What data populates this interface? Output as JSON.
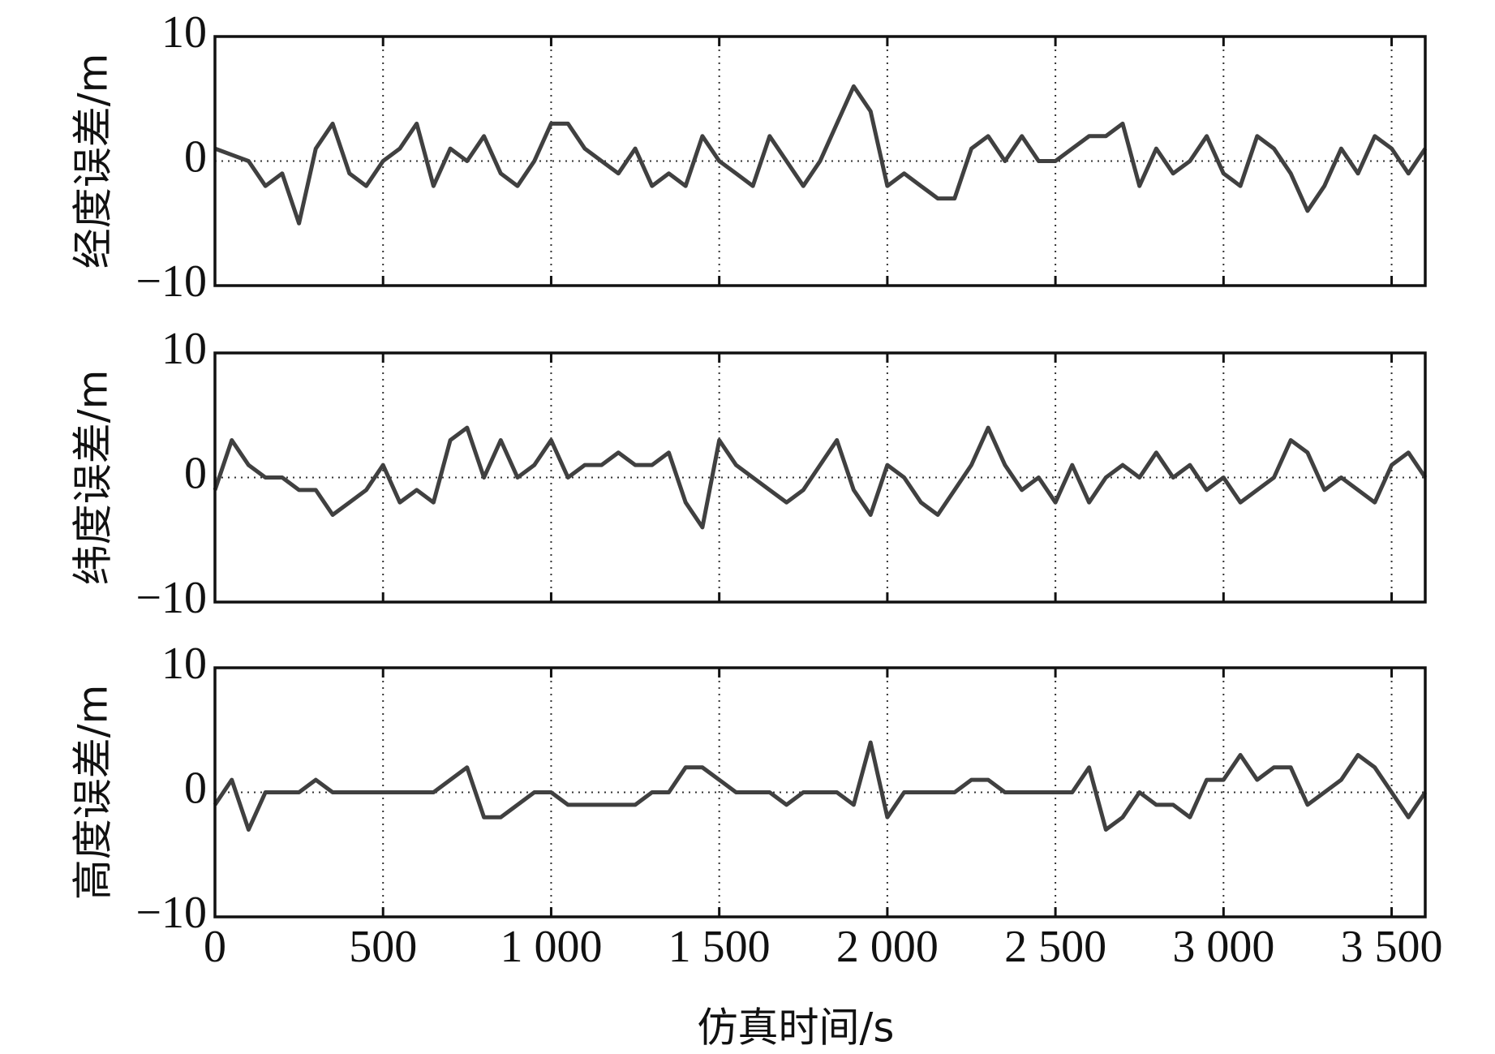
{
  "chart_data": [
    {
      "type": "line",
      "ylabel": "经度误差/m",
      "color": "#404040",
      "x": [
        0,
        50,
        100,
        150,
        200,
        250,
        300,
        350,
        400,
        450,
        500,
        550,
        600,
        650,
        700,
        750,
        800,
        850,
        900,
        950,
        1000,
        1050,
        1100,
        1150,
        1200,
        1250,
        1300,
        1350,
        1400,
        1450,
        1500,
        1550,
        1600,
        1650,
        1700,
        1750,
        1800,
        1850,
        1900,
        1950,
        2000,
        2050,
        2100,
        2150,
        2200,
        2250,
        2300,
        2350,
        2400,
        2450,
        2500,
        2550,
        2600,
        2650,
        2700,
        2750,
        2800,
        2850,
        2900,
        2950,
        3000,
        3050,
        3100,
        3150,
        3200,
        3250,
        3300,
        3350,
        3400,
        3450,
        3500,
        3550,
        3600
      ],
      "values": [
        1,
        0.5,
        0,
        -2,
        -1,
        -5,
        1,
        3,
        -1,
        -2,
        0,
        1,
        3,
        -2,
        1,
        0,
        2,
        -1,
        -2,
        0,
        3,
        3,
        1,
        0,
        -1,
        1,
        -2,
        -1,
        -2,
        2,
        0,
        -1,
        -2,
        2,
        0,
        -2,
        0,
        3,
        6,
        4,
        -2,
        -1,
        -2,
        -3,
        -3,
        1,
        2,
        0,
        2,
        0,
        0,
        1,
        2,
        2,
        3,
        -2,
        1,
        -1,
        0,
        2,
        -1,
        -2,
        2,
        1,
        -1,
        -4,
        -2,
        1,
        -1,
        2,
        1,
        -1,
        1
      ],
      "xlim": [
        0,
        3600
      ],
      "xticks": [
        0,
        500,
        1000,
        1500,
        2000,
        2500,
        3000,
        3500
      ],
      "ylim": [
        -10,
        10
      ],
      "yticks": [
        {
          "value": -10,
          "label": "−10"
        },
        0,
        10
      ],
      "grid": true
    },
    {
      "type": "line",
      "ylabel": "纬度误差/m",
      "color": "#404040",
      "x": [
        0,
        50,
        100,
        150,
        200,
        250,
        300,
        350,
        400,
        450,
        500,
        550,
        600,
        650,
        700,
        750,
        800,
        850,
        900,
        950,
        1000,
        1050,
        1100,
        1150,
        1200,
        1250,
        1300,
        1350,
        1400,
        1450,
        1500,
        1550,
        1600,
        1650,
        1700,
        1750,
        1800,
        1850,
        1900,
        1950,
        2000,
        2050,
        2100,
        2150,
        2200,
        2250,
        2300,
        2350,
        2400,
        2450,
        2500,
        2550,
        2600,
        2650,
        2700,
        2750,
        2800,
        2850,
        2900,
        2950,
        3000,
        3050,
        3100,
        3150,
        3200,
        3250,
        3300,
        3350,
        3400,
        3450,
        3500,
        3550,
        3600
      ],
      "values": [
        -1,
        3,
        1,
        0,
        0,
        -1,
        -1,
        -3,
        -2,
        -1,
        1,
        -2,
        -1,
        -2,
        3,
        4,
        0,
        3,
        0,
        1,
        3,
        0,
        1,
        1,
        2,
        1,
        1,
        2,
        -2,
        -4,
        3,
        1,
        0,
        -1,
        -2,
        -1,
        1,
        3,
        -1,
        -3,
        1,
        0,
        -2,
        -3,
        -1,
        1,
        4,
        1,
        -1,
        0,
        -2,
        1,
        -2,
        0,
        1,
        0,
        2,
        0,
        1,
        -1,
        0,
        -2,
        -1,
        0,
        3,
        2,
        -1,
        0,
        -1,
        -2,
        1,
        2,
        0
      ],
      "xlim": [
        0,
        3600
      ],
      "xticks": [
        0,
        500,
        1000,
        1500,
        2000,
        2500,
        3000,
        3500
      ],
      "ylim": [
        -10,
        10
      ],
      "yticks": [
        {
          "value": -10,
          "label": "−10"
        },
        0,
        10
      ],
      "grid": true
    },
    {
      "type": "line",
      "ylabel": "高度误差/m",
      "xlabel": "仿真时间/s",
      "color": "#404040",
      "x": [
        0,
        50,
        100,
        150,
        200,
        250,
        300,
        350,
        400,
        450,
        500,
        550,
        600,
        650,
        700,
        750,
        800,
        850,
        900,
        950,
        1000,
        1050,
        1100,
        1150,
        1200,
        1250,
        1300,
        1350,
        1400,
        1450,
        1500,
        1550,
        1600,
        1650,
        1700,
        1750,
        1800,
        1850,
        1900,
        1950,
        2000,
        2050,
        2100,
        2150,
        2200,
        2250,
        2300,
        2350,
        2400,
        2450,
        2500,
        2550,
        2600,
        2650,
        2700,
        2750,
        2800,
        2850,
        2900,
        2950,
        3000,
        3050,
        3100,
        3150,
        3200,
        3250,
        3300,
        3350,
        3400,
        3450,
        3500,
        3550,
        3600
      ],
      "values": [
        -1,
        1,
        -3,
        0,
        0,
        0,
        1,
        0,
        0,
        0,
        0,
        0,
        0,
        0,
        1,
        2,
        -2,
        -2,
        -1,
        0,
        0,
        -1,
        -1,
        -1,
        -1,
        -1,
        0,
        0,
        2,
        2,
        1,
        0,
        0,
        0,
        -1,
        0,
        0,
        0,
        -1,
        4,
        -2,
        0,
        0,
        0,
        0,
        1,
        1,
        0,
        0,
        0,
        0,
        0,
        2,
        -3,
        -2,
        0,
        -1,
        -1,
        -2,
        1,
        1,
        3,
        1,
        2,
        2,
        -1,
        0,
        1,
        3,
        2,
        0,
        -2,
        0
      ],
      "xlim": [
        0,
        3600
      ],
      "xticks": [
        0,
        500,
        {
          "value": 1000,
          "label": "1 000"
        },
        {
          "value": 1500,
          "label": "1 500"
        },
        {
          "value": 2000,
          "label": "2 000"
        },
        {
          "value": 2500,
          "label": "2 500"
        },
        {
          "value": 3000,
          "label": "3 000"
        },
        {
          "value": 3500,
          "label": "3 500"
        }
      ],
      "ylim": [
        -10,
        10
      ],
      "yticks": [
        {
          "value": -10,
          "label": "−10"
        },
        0,
        10
      ],
      "grid": true
    }
  ]
}
